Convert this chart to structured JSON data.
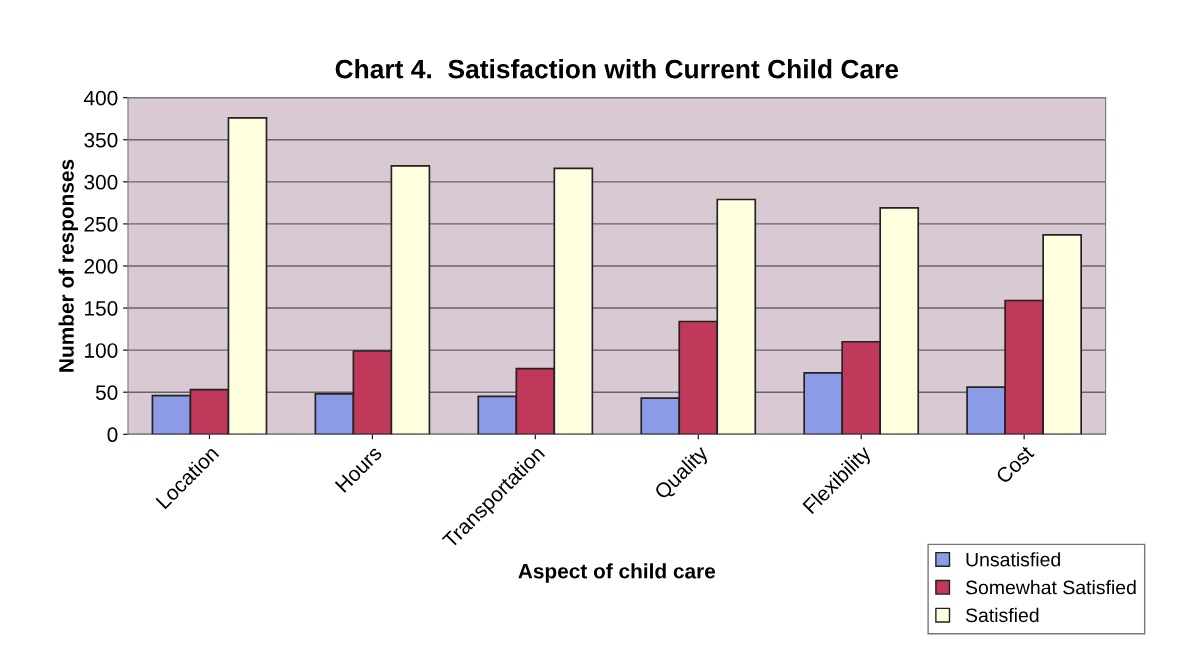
{
  "chart_data": {
    "type": "bar",
    "title": "Chart 4.  Satisfaction with Current Child Care",
    "xlabel": "Aspect of child care",
    "ylabel": "Number of responses",
    "categories": [
      "Location",
      "Hours",
      "Transportation",
      "Quality",
      "Flexibility",
      "Cost"
    ],
    "series": [
      {
        "name": "Unsatisfied",
        "color": "#8c9be6",
        "values": [
          46,
          48,
          45,
          43,
          73,
          56
        ]
      },
      {
        "name": "Somewhat Satisfied",
        "color": "#c0395a",
        "values": [
          53,
          99,
          78,
          134,
          110,
          159
        ]
      },
      {
        "name": "Satisfied",
        "color": "#ffffe0",
        "values": [
          376,
          319,
          316,
          279,
          269,
          237
        ]
      }
    ],
    "ylim": [
      0,
      400
    ],
    "yticks": [
      0,
      50,
      100,
      150,
      200,
      250,
      300,
      350,
      400
    ],
    "grid": "y",
    "legend": "bottom right"
  }
}
